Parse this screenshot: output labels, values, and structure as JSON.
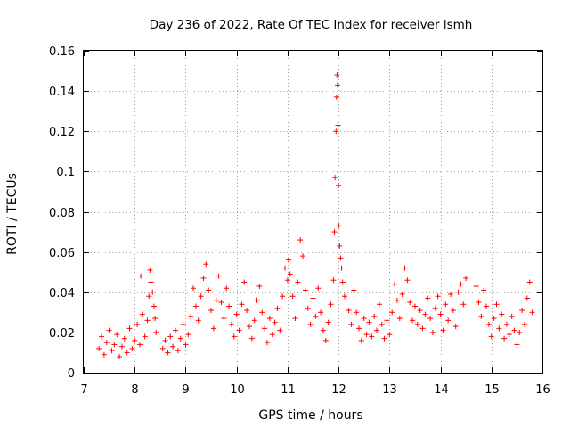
{
  "chart_data": {
    "type": "scatter",
    "title": "Day 236 of 2022, Rate Of TEC Index for receiver lsmh",
    "xlabel": "GPS time / hours",
    "ylabel": "ROTI / TECUs",
    "xlim": [
      7,
      16
    ],
    "ylim": [
      0,
      0.16
    ],
    "xticks": [
      7,
      8,
      9,
      10,
      11,
      12,
      13,
      14,
      15,
      16
    ],
    "xtick_labels": [
      "7",
      "8",
      "9",
      "10",
      "11",
      "12",
      "13",
      "14",
      "15",
      "16"
    ],
    "yticks": [
      0,
      0.02,
      0.04,
      0.06,
      0.08,
      0.1,
      0.12,
      0.14,
      0.16
    ],
    "ytick_labels": [
      "0",
      "0.02",
      "0.04",
      "0.06",
      "0.08",
      "0.1",
      "0.12",
      "0.14",
      "0.16"
    ],
    "grid": true,
    "marker": "+",
    "color": "#ff0000",
    "series": [
      {
        "name": "ROTI",
        "points": [
          [
            7.3,
            0.012
          ],
          [
            7.35,
            0.018
          ],
          [
            7.4,
            0.009
          ],
          [
            7.45,
            0.015
          ],
          [
            7.5,
            0.021
          ],
          [
            7.55,
            0.011
          ],
          [
            7.6,
            0.014
          ],
          [
            7.65,
            0.019
          ],
          [
            7.7,
            0.008
          ],
          [
            7.75,
            0.013
          ],
          [
            7.8,
            0.017
          ],
          [
            7.85,
            0.01
          ],
          [
            7.9,
            0.022
          ],
          [
            7.95,
            0.012
          ],
          [
            8.0,
            0.016
          ],
          [
            8.05,
            0.024
          ],
          [
            8.1,
            0.014
          ],
          [
            8.12,
            0.048
          ],
          [
            8.15,
            0.029
          ],
          [
            8.2,
            0.018
          ],
          [
            8.25,
            0.026
          ],
          [
            8.28,
            0.038
          ],
          [
            8.3,
            0.051
          ],
          [
            8.32,
            0.045
          ],
          [
            8.35,
            0.04
          ],
          [
            8.38,
            0.033
          ],
          [
            8.4,
            0.027
          ],
          [
            8.42,
            0.02
          ],
          [
            8.55,
            0.012
          ],
          [
            8.6,
            0.016
          ],
          [
            8.65,
            0.01
          ],
          [
            8.7,
            0.018
          ],
          [
            8.75,
            0.013
          ],
          [
            8.8,
            0.021
          ],
          [
            8.85,
            0.011
          ],
          [
            8.9,
            0.017
          ],
          [
            8.95,
            0.024
          ],
          [
            9.0,
            0.014
          ],
          [
            9.05,
            0.019
          ],
          [
            9.1,
            0.028
          ],
          [
            9.15,
            0.042
          ],
          [
            9.2,
            0.033
          ],
          [
            9.25,
            0.026
          ],
          [
            9.3,
            0.038
          ],
          [
            9.35,
            0.047
          ],
          [
            9.4,
            0.054
          ],
          [
            9.45,
            0.041
          ],
          [
            9.5,
            0.031
          ],
          [
            9.55,
            0.022
          ],
          [
            9.6,
            0.036
          ],
          [
            9.65,
            0.048
          ],
          [
            9.7,
            0.035
          ],
          [
            9.75,
            0.027
          ],
          [
            9.8,
            0.042
          ],
          [
            9.85,
            0.033
          ],
          [
            9.9,
            0.024
          ],
          [
            9.95,
            0.018
          ],
          [
            10.0,
            0.029
          ],
          [
            10.05,
            0.021
          ],
          [
            10.1,
            0.034
          ],
          [
            10.15,
            0.045
          ],
          [
            10.2,
            0.031
          ],
          [
            10.25,
            0.023
          ],
          [
            10.3,
            0.017
          ],
          [
            10.35,
            0.026
          ],
          [
            10.4,
            0.036
          ],
          [
            10.45,
            0.043
          ],
          [
            10.5,
            0.03
          ],
          [
            10.55,
            0.022
          ],
          [
            10.6,
            0.015
          ],
          [
            10.65,
            0.027
          ],
          [
            10.7,
            0.019
          ],
          [
            10.75,
            0.025
          ],
          [
            10.8,
            0.032
          ],
          [
            10.85,
            0.021
          ],
          [
            10.9,
            0.038
          ],
          [
            10.95,
            0.052
          ],
          [
            11.0,
            0.046
          ],
          [
            11.02,
            0.056
          ],
          [
            11.05,
            0.049
          ],
          [
            11.1,
            0.038
          ],
          [
            11.15,
            0.027
          ],
          [
            11.2,
            0.045
          ],
          [
            11.25,
            0.066
          ],
          [
            11.3,
            0.058
          ],
          [
            11.35,
            0.041
          ],
          [
            11.4,
            0.032
          ],
          [
            11.45,
            0.024
          ],
          [
            11.5,
            0.037
          ],
          [
            11.55,
            0.028
          ],
          [
            11.6,
            0.042
          ],
          [
            11.65,
            0.03
          ],
          [
            11.7,
            0.021
          ],
          [
            11.75,
            0.016
          ],
          [
            11.8,
            0.025
          ],
          [
            11.85,
            0.034
          ],
          [
            11.9,
            0.046
          ],
          [
            11.92,
            0.07
          ],
          [
            11.93,
            0.097
          ],
          [
            11.95,
            0.12
          ],
          [
            11.96,
            0.137
          ],
          [
            11.97,
            0.148
          ],
          [
            11.98,
            0.143
          ],
          [
            11.99,
            0.123
          ],
          [
            12.0,
            0.093
          ],
          [
            12.01,
            0.073
          ],
          [
            12.02,
            0.063
          ],
          [
            12.04,
            0.057
          ],
          [
            12.06,
            0.052
          ],
          [
            12.08,
            0.045
          ],
          [
            12.12,
            0.038
          ],
          [
            12.2,
            0.031
          ],
          [
            12.25,
            0.024
          ],
          [
            12.3,
            0.041
          ],
          [
            12.35,
            0.03
          ],
          [
            12.4,
            0.022
          ],
          [
            12.45,
            0.016
          ],
          [
            12.5,
            0.027
          ],
          [
            12.55,
            0.019
          ],
          [
            12.6,
            0.025
          ],
          [
            12.65,
            0.018
          ],
          [
            12.7,
            0.028
          ],
          [
            12.75,
            0.021
          ],
          [
            12.8,
            0.034
          ],
          [
            12.85,
            0.024
          ],
          [
            12.9,
            0.017
          ],
          [
            12.95,
            0.026
          ],
          [
            13.0,
            0.019
          ],
          [
            13.05,
            0.03
          ],
          [
            13.1,
            0.044
          ],
          [
            13.15,
            0.036
          ],
          [
            13.2,
            0.027
          ],
          [
            13.25,
            0.039
          ],
          [
            13.3,
            0.052
          ],
          [
            13.35,
            0.046
          ],
          [
            13.4,
            0.035
          ],
          [
            13.45,
            0.026
          ],
          [
            13.5,
            0.033
          ],
          [
            13.55,
            0.024
          ],
          [
            13.6,
            0.031
          ],
          [
            13.65,
            0.022
          ],
          [
            13.7,
            0.029
          ],
          [
            13.75,
            0.037
          ],
          [
            13.8,
            0.027
          ],
          [
            13.85,
            0.02
          ],
          [
            13.9,
            0.032
          ],
          [
            13.95,
            0.038
          ],
          [
            14.0,
            0.029
          ],
          [
            14.05,
            0.021
          ],
          [
            14.1,
            0.034
          ],
          [
            14.15,
            0.026
          ],
          [
            14.2,
            0.039
          ],
          [
            14.25,
            0.031
          ],
          [
            14.3,
            0.023
          ],
          [
            14.35,
            0.04
          ],
          [
            14.4,
            0.044
          ],
          [
            14.45,
            0.034
          ],
          [
            14.5,
            0.047
          ],
          [
            14.7,
            0.043
          ],
          [
            14.75,
            0.035
          ],
          [
            14.8,
            0.028
          ],
          [
            14.85,
            0.041
          ],
          [
            14.9,
            0.033
          ],
          [
            14.95,
            0.024
          ],
          [
            15.0,
            0.018
          ],
          [
            15.05,
            0.027
          ],
          [
            15.1,
            0.034
          ],
          [
            15.15,
            0.022
          ],
          [
            15.2,
            0.029
          ],
          [
            15.25,
            0.017
          ],
          [
            15.3,
            0.024
          ],
          [
            15.35,
            0.019
          ],
          [
            15.4,
            0.028
          ],
          [
            15.45,
            0.021
          ],
          [
            15.5,
            0.014
          ],
          [
            15.55,
            0.02
          ],
          [
            15.6,
            0.031
          ],
          [
            15.65,
            0.024
          ],
          [
            15.7,
            0.037
          ],
          [
            15.75,
            0.045
          ],
          [
            15.8,
            0.03
          ]
        ]
      }
    ]
  }
}
